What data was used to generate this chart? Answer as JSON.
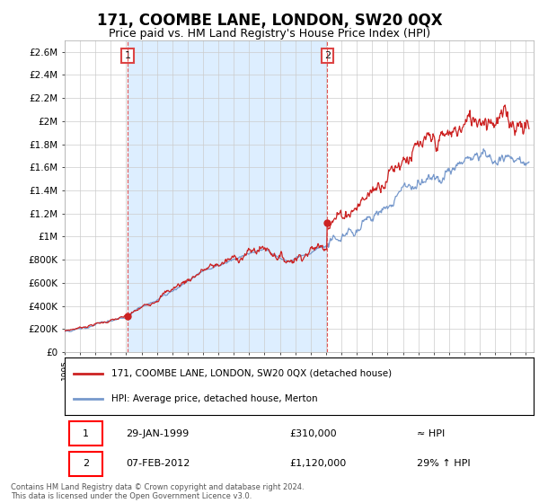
{
  "title": "171, COOMBE LANE, LONDON, SW20 0QX",
  "subtitle": "Price paid vs. HM Land Registry's House Price Index (HPI)",
  "title_fontsize": 12,
  "subtitle_fontsize": 9,
  "background_color": "#ffffff",
  "grid_color": "#cccccc",
  "band_color": "#ddeeff",
  "ylim": [
    0,
    2700000
  ],
  "yticks": [
    0,
    200000,
    400000,
    600000,
    800000,
    1000000,
    1200000,
    1400000,
    1600000,
    1800000,
    2000000,
    2200000,
    2400000,
    2600000
  ],
  "ytick_labels": [
    "£0",
    "£200K",
    "£400K",
    "£600K",
    "£800K",
    "£1M",
    "£1.2M",
    "£1.4M",
    "£1.6M",
    "£1.8M",
    "£2M",
    "£2.2M",
    "£2.4M",
    "£2.6M"
  ],
  "sale1_date": 1999.08,
  "sale1_price": 310000,
  "sale2_date": 2012.09,
  "sale2_price": 1120000,
  "marker1_label": "1",
  "marker2_label": "2",
  "dashed_line_color": "#dd4444",
  "sale_color": "#cc2222",
  "hpi_color": "#7799cc",
  "legend_sale_label": "171, COOMBE LANE, LONDON, SW20 0QX (detached house)",
  "legend_hpi_label": "HPI: Average price, detached house, Merton",
  "table_row1": [
    "1",
    "29-JAN-1999",
    "£310,000",
    "≈ HPI"
  ],
  "table_row2": [
    "2",
    "07-FEB-2012",
    "£1,120,000",
    "29% ↑ HPI"
  ],
  "footer": "Contains HM Land Registry data © Crown copyright and database right 2024.\nThis data is licensed under the Open Government Licence v3.0.",
  "xlim_start": 1995.0,
  "xlim_end": 2025.5
}
